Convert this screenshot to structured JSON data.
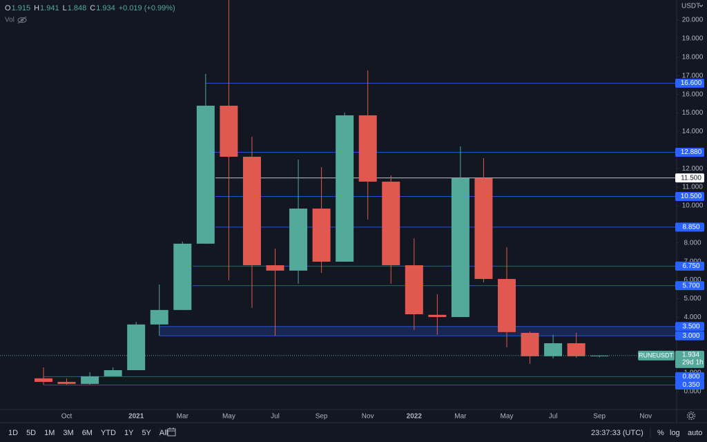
{
  "chart_data": {
    "type": "candlestick",
    "symbol": "RUNEUSDT",
    "currency": "USDT",
    "volume_label": "Vol",
    "header": {
      "open_label": "O",
      "high_label": "H",
      "low_label": "L",
      "close_label": "C",
      "change": "+0.019 (+0.99%)"
    },
    "categories": [
      null,
      "Oct",
      null,
      null,
      "2021",
      null,
      "Mar",
      null,
      "May",
      null,
      "Jul",
      null,
      "Sep",
      null,
      "Nov",
      null,
      "2022",
      null,
      "Mar",
      null,
      "May",
      null,
      "Jul",
      null,
      "Sep",
      null,
      "Nov"
    ],
    "open": [
      0.71,
      0.52,
      0.41,
      0.82,
      1.15,
      3.61,
      4.39,
      7.96,
      15.39,
      12.64,
      6.8,
      6.51,
      9.85,
      6.99,
      14.87,
      11.3,
      6.8,
      4.13,
      4.01,
      11.49,
      6.06,
      3.16,
      1.9,
      2.6,
      1.915,
      null,
      null
    ],
    "high": [
      1.3,
      0.71,
      1.04,
      1.3,
      3.75,
      5.76,
      8.07,
      17.1,
      21.2,
      13.72,
      7.7,
      12.49,
      12.08,
      15.02,
      17.29,
      11.64,
      8.25,
      5.24,
      13.2,
      12.57,
      7.77,
      3.23,
      3.05,
      3.16,
      1.941,
      null,
      null
    ],
    "low": [
      0.37,
      0.37,
      0.37,
      0.82,
      1.15,
      3.01,
      4.39,
      7.96,
      5.99,
      4.5,
      3.01,
      5.8,
      6.39,
      6.99,
      9.26,
      5.8,
      3.31,
      3.05,
      4.01,
      5.87,
      2.38,
      1.49,
      1.78,
      1.82,
      1.848,
      null,
      null
    ],
    "close": [
      0.52,
      0.41,
      0.82,
      1.15,
      3.61,
      4.39,
      7.96,
      15.39,
      12.64,
      6.8,
      6.51,
      9.85,
      6.99,
      14.87,
      11.3,
      6.8,
      4.16,
      4.01,
      11.49,
      6.06,
      3.2,
      1.9,
      2.6,
      1.9,
      1.934,
      null,
      null
    ],
    "up_color": "#53a99a",
    "down_color": "#e0584f",
    "ylim": [
      -0.97,
      21.08
    ],
    "yticks": [
      {
        "value": 0,
        "label": "0.000"
      },
      {
        "value": 1,
        "label": "1.000"
      },
      {
        "value": 4,
        "label": "4.000"
      },
      {
        "value": 5,
        "label": "5.000"
      },
      {
        "value": 6,
        "label": "6.000"
      },
      {
        "value": 7,
        "label": "7.000"
      },
      {
        "value": 8,
        "label": "8.000"
      },
      {
        "value": 10,
        "label": "10.000"
      },
      {
        "value": 11,
        "label": "11.000"
      },
      {
        "value": 12,
        "label": "12.000"
      },
      {
        "value": 14,
        "label": "14.000"
      },
      {
        "value": 15,
        "label": "15.000"
      },
      {
        "value": 16,
        "label": "16.000"
      },
      {
        "value": 17,
        "label": "17.000"
      },
      {
        "value": 18,
        "label": "18.000"
      },
      {
        "value": 19,
        "label": "19.000"
      },
      {
        "value": 20,
        "label": "20.000"
      }
    ],
    "levels": [
      {
        "value": 16.6,
        "label": "16.600"
      },
      {
        "value": 12.88,
        "label": "12.880"
      },
      {
        "value": 11.5,
        "label": "11.500"
      },
      {
        "value": 10.5,
        "label": "10.500"
      },
      {
        "value": 8.85,
        "label": "8.850"
      },
      {
        "value": 6.75,
        "label": "6.750"
      },
      {
        "value": 5.7,
        "label": "5.700"
      },
      {
        "value": 3.5,
        "label": "3.500"
      },
      {
        "value": 3,
        "label": "3.000"
      },
      {
        "value": 0.8,
        "label": "0.800"
      },
      {
        "value": 0.35,
        "label": "0.350"
      }
    ],
    "zone": [
      3,
      3.5
    ],
    "last_price": {
      "value": 1.934,
      "label": "1.934"
    },
    "countdown": "29d 1h"
  },
  "toolbar": {
    "ranges": [
      "1D",
      "5D",
      "1M",
      "3M",
      "6M",
      "YTD",
      "1Y",
      "5Y",
      "All"
    ],
    "clock": "23:37:33 (UTC)",
    "options": [
      "%",
      "log",
      "auto"
    ]
  }
}
